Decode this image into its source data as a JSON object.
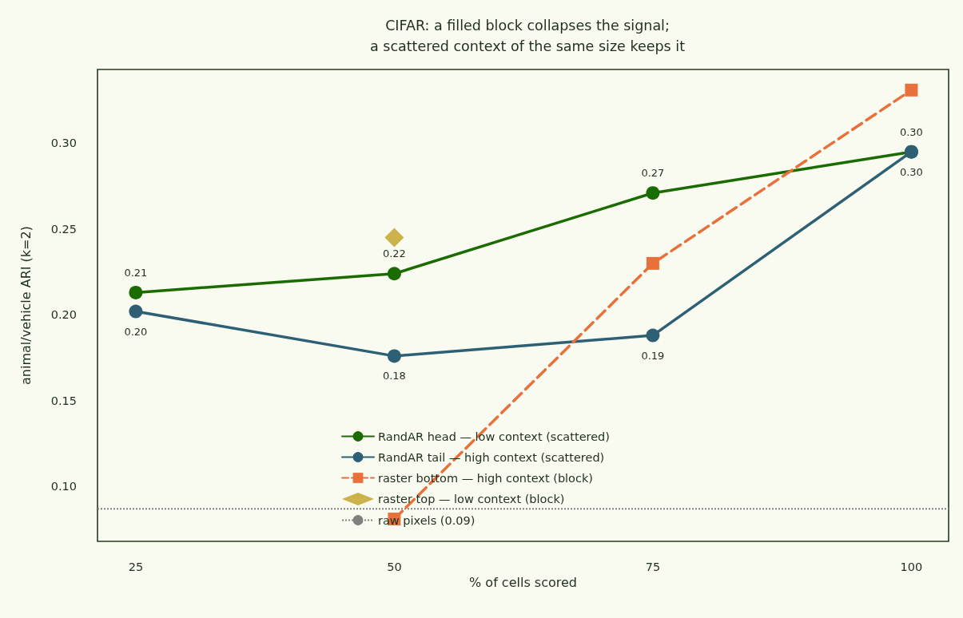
{
  "chart_data": {
    "type": "line",
    "title": "CIFAR: a filled block collapses the signal;\na scattered context of the same size keeps it",
    "xlabel": "% of cells scored",
    "ylabel": "animal/vehicle ARI (k=2)",
    "xlim": [
      21.3,
      103.6
    ],
    "xticks": [
      25,
      50,
      75,
      100
    ],
    "ylim": [
      0.068,
      0.343
    ],
    "yticks": [
      {
        "value": 0.1,
        "label": "0.10"
      },
      0.15,
      {
        "value": 0.2,
        "label": "0.20"
      },
      0.25,
      {
        "value": 0.3,
        "label": "0.30"
      }
    ],
    "grid": false,
    "legend": "bottom",
    "series": [
      {
        "name": "RandAR head — low context (scattered)",
        "color": "#1a6b00",
        "marker": "circle",
        "line_style": "solid",
        "x": [
          25,
          50,
          75,
          100
        ],
        "values": [
          0.213,
          0.224,
          0.271,
          0.295
        ],
        "value_labels": [
          "0.21",
          "0.22",
          "0.27",
          "0.30"
        ]
      },
      {
        "name": "RandAR tail — high context (scattered)",
        "color": "#2d6075",
        "marker": "circle",
        "line_style": "solid",
        "x": [
          25,
          50,
          75,
          100
        ],
        "values": [
          0.202,
          0.176,
          0.188,
          0.295
        ],
        "value_labels": [
          "0.20",
          "0.18",
          "0.19",
          "0.30"
        ]
      },
      {
        "name": "raster bottom — high context (block)",
        "color": "#e8703a",
        "marker": "square",
        "line_style": "dashed",
        "x": [
          50,
          75,
          100
        ],
        "values": [
          0.081,
          0.23,
          0.331
        ]
      },
      {
        "name": "raster top — low context (block)",
        "type": "scatter",
        "color": "#c0a020",
        "marker": "diamond",
        "x": [
          50
        ],
        "values": [
          0.245
        ]
      }
    ],
    "ref_lines": [
      {
        "axis": "y",
        "value": 0.087,
        "label": "raw pixels (0.09)",
        "color": "#808080",
        "line_style": "dotted"
      }
    ]
  }
}
